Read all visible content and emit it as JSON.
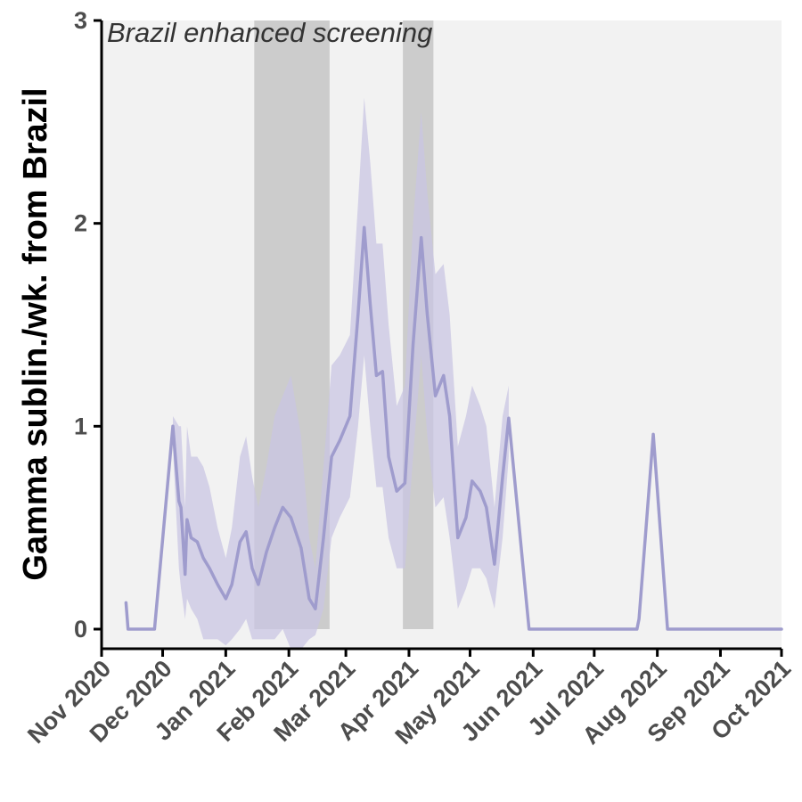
{
  "chart_data": {
    "type": "line",
    "title": "",
    "annotation": "Brazil enhanced screening",
    "ylabel": "Gamma sublin./wk. from Brazil",
    "xlabel": "",
    "xlim": [
      "2020-11-01",
      "2021-10-01"
    ],
    "ylim": [
      -0.1,
      3
    ],
    "x_ticks": [
      {
        "date": "2020-11-01",
        "label": "Nov 2020"
      },
      {
        "date": "2020-12-01",
        "label": "Dec 2020"
      },
      {
        "date": "2021-01-01",
        "label": "Jan 2021"
      },
      {
        "date": "2021-02-01",
        "label": "Feb 2021"
      },
      {
        "date": "2021-03-01",
        "label": "Mar 2021"
      },
      {
        "date": "2021-04-01",
        "label": "Apr 2021"
      },
      {
        "date": "2021-05-01",
        "label": "May 2021"
      },
      {
        "date": "2021-06-01",
        "label": "Jun 2021"
      },
      {
        "date": "2021-07-01",
        "label": "Jul 2021"
      },
      {
        "date": "2021-08-01",
        "label": "Aug 2021"
      },
      {
        "date": "2021-09-01",
        "label": "Sep 2021"
      },
      {
        "date": "2021-10-01",
        "label": "Oct 2021"
      }
    ],
    "y_ticks": [
      {
        "value": 0,
        "label": "0"
      },
      {
        "value": 1,
        "label": "1"
      },
      {
        "value": 2,
        "label": "2"
      },
      {
        "value": 3,
        "label": "3"
      }
    ],
    "grid": false,
    "shaded_periods": [
      {
        "start": "2021-01-15",
        "end": "2021-02-21"
      },
      {
        "start": "2021-03-29",
        "end": "2021-04-13"
      }
    ],
    "series": [
      {
        "name": "",
        "color": "#9f9ccd",
        "band_color": "#c9c6e3",
        "points": [
          {
            "x": "2020-11-13",
            "y": 0.13
          },
          {
            "x": "2020-11-14",
            "y": 0
          },
          {
            "x": "2020-11-27",
            "y": 0
          },
          {
            "x": "2020-12-06",
            "y": 1.0,
            "lo": 0.9,
            "hi": 1.05
          },
          {
            "x": "2020-12-09",
            "y": 0.63,
            "lo": 0.3,
            "hi": 1.0
          },
          {
            "x": "2020-12-10",
            "y": 0.6,
            "lo": 0.2,
            "hi": 1.0
          },
          {
            "x": "2020-12-12",
            "y": 0.27,
            "lo": 0.05,
            "hi": 0.6
          },
          {
            "x": "2020-12-13",
            "y": 0.54,
            "lo": 0.15,
            "hi": 1.0
          },
          {
            "x": "2020-12-15",
            "y": 0.45,
            "lo": 0.1,
            "hi": 0.85
          },
          {
            "x": "2020-12-18",
            "y": 0.43,
            "lo": 0.05,
            "hi": 0.85
          },
          {
            "x": "2020-12-21",
            "y": 0.35,
            "lo": -0.05,
            "hi": 0.8
          },
          {
            "x": "2020-12-24",
            "y": 0.3,
            "lo": -0.05,
            "hi": 0.7
          },
          {
            "x": "2020-12-28",
            "y": 0.22,
            "lo": -0.05,
            "hi": 0.5
          },
          {
            "x": "2021-01-01",
            "y": 0.15,
            "lo": -0.08,
            "hi": 0.35
          },
          {
            "x": "2021-01-04",
            "y": 0.22,
            "lo": -0.05,
            "hi": 0.5
          },
          {
            "x": "2021-01-08",
            "y": 0.43,
            "lo": 0.0,
            "hi": 0.85
          },
          {
            "x": "2021-01-11",
            "y": 0.48,
            "lo": 0.05,
            "hi": 0.95
          },
          {
            "x": "2021-01-14",
            "y": 0.3,
            "lo": -0.05,
            "hi": 0.75
          },
          {
            "x": "2021-01-17",
            "y": 0.22,
            "lo": -0.05,
            "hi": 0.6
          },
          {
            "x": "2021-01-21",
            "y": 0.38,
            "lo": -0.05,
            "hi": 0.8
          },
          {
            "x": "2021-01-25",
            "y": 0.5,
            "lo": -0.05,
            "hi": 1.05
          },
          {
            "x": "2021-01-29",
            "y": 0.6,
            "lo": 0.0,
            "hi": 1.15
          },
          {
            "x": "2021-02-02",
            "y": 0.55,
            "lo": -0.1,
            "hi": 1.25
          },
          {
            "x": "2021-02-07",
            "y": 0.4,
            "lo": -0.1,
            "hi": 0.95
          },
          {
            "x": "2021-02-11",
            "y": 0.15,
            "lo": -0.05,
            "hi": 0.45
          },
          {
            "x": "2021-02-14",
            "y": 0.1,
            "lo": -0.03,
            "hi": 0.3
          },
          {
            "x": "2021-02-18",
            "y": 0.45,
            "lo": 0.1,
            "hi": 0.8
          },
          {
            "x": "2021-02-22",
            "y": 0.85,
            "lo": 0.45,
            "hi": 1.3
          },
          {
            "x": "2021-02-26",
            "y": 0.93,
            "lo": 0.55,
            "hi": 1.35
          },
          {
            "x": "2021-03-03",
            "y": 1.05,
            "lo": 0.65,
            "hi": 1.45
          },
          {
            "x": "2021-03-07",
            "y": 1.55,
            "lo": 1.0,
            "hi": 2.1
          },
          {
            "x": "2021-03-10",
            "y": 1.98,
            "lo": 1.35,
            "hi": 2.62
          },
          {
            "x": "2021-03-13",
            "y": 1.6,
            "lo": 1.0,
            "hi": 2.3
          },
          {
            "x": "2021-03-16",
            "y": 1.25,
            "lo": 0.7,
            "hi": 1.9
          },
          {
            "x": "2021-03-19",
            "y": 1.27,
            "lo": 0.7,
            "hi": 1.9
          },
          {
            "x": "2021-03-22",
            "y": 0.85,
            "lo": 0.45,
            "hi": 1.5
          },
          {
            "x": "2021-03-26",
            "y": 0.68,
            "lo": 0.3,
            "hi": 1.1
          },
          {
            "x": "2021-03-30",
            "y": 0.72,
            "lo": 0.3,
            "hi": 1.2
          },
          {
            "x": "2021-04-03",
            "y": 1.4,
            "lo": 0.85,
            "hi": 2.0
          },
          {
            "x": "2021-04-07",
            "y": 1.93,
            "lo": 1.35,
            "hi": 2.55
          },
          {
            "x": "2021-04-10",
            "y": 1.55,
            "lo": 0.95,
            "hi": 2.15
          },
          {
            "x": "2021-04-14",
            "y": 1.15,
            "lo": 0.6,
            "hi": 1.75
          },
          {
            "x": "2021-04-18",
            "y": 1.25,
            "lo": 0.65,
            "hi": 1.8
          },
          {
            "x": "2021-04-21",
            "y": 1.05,
            "lo": 0.45,
            "hi": 1.55
          },
          {
            "x": "2021-04-25",
            "y": 0.45,
            "lo": 0.1,
            "hi": 0.9
          },
          {
            "x": "2021-04-29",
            "y": 0.55,
            "lo": 0.2,
            "hi": 1.05
          },
          {
            "x": "2021-05-02",
            "y": 0.73,
            "lo": 0.3,
            "hi": 1.2
          },
          {
            "x": "2021-05-06",
            "y": 0.68,
            "lo": 0.3,
            "hi": 1.1
          },
          {
            "x": "2021-05-09",
            "y": 0.6,
            "lo": 0.25,
            "hi": 1.0
          },
          {
            "x": "2021-05-13",
            "y": 0.32,
            "lo": 0.1,
            "hi": 0.6
          },
          {
            "x": "2021-05-17",
            "y": 0.75,
            "lo": 0.45,
            "hi": 1.05
          },
          {
            "x": "2021-05-20",
            "y": 1.04,
            "lo": 0.85,
            "hi": 1.2
          },
          {
            "x": "2021-05-30",
            "y": 0
          },
          {
            "x": "2021-07-22",
            "y": 0
          },
          {
            "x": "2021-07-23",
            "y": 0.05
          },
          {
            "x": "2021-07-30",
            "y": 0.96,
            "lo": 0.9,
            "hi": 1.0
          },
          {
            "x": "2021-08-06",
            "y": 0
          },
          {
            "x": "2021-10-01",
            "y": 0
          }
        ]
      }
    ]
  }
}
